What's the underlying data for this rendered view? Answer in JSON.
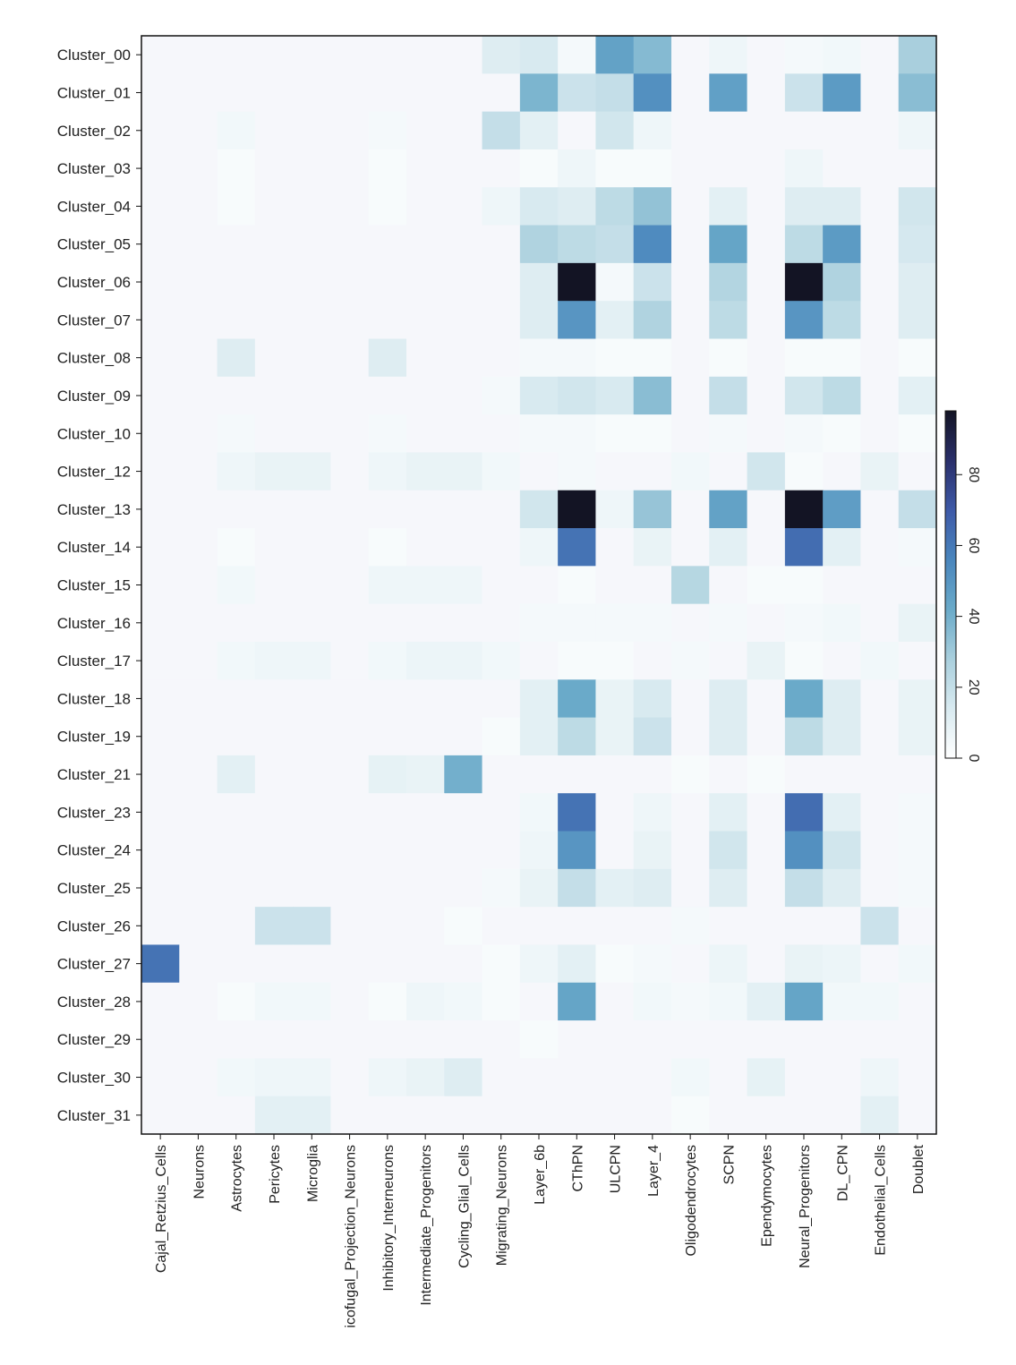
{
  "chart_data": {
    "type": "heatmap",
    "title": "",
    "xlabel": "",
    "ylabel": "",
    "colorbar": {
      "min": 0,
      "max": 98,
      "ticks": [
        0,
        20,
        40,
        60,
        80
      ],
      "tick_labels": [
        "0",
        "20",
        "40",
        "60",
        "80"
      ],
      "colors": [
        "#ffffff",
        "#d8eaf0",
        "#a9cfdd",
        "#6aaac9",
        "#4a86bd",
        "#3e5aa8",
        "#2a2f6a",
        "#131424"
      ]
    },
    "rows": [
      "Cluster_00",
      "Cluster_01",
      "Cluster_02",
      "Cluster_03",
      "Cluster_04",
      "Cluster_05",
      "Cluster_06",
      "Cluster_07",
      "Cluster_08",
      "Cluster_09",
      "Cluster_10",
      "Cluster_12",
      "Cluster_13",
      "Cluster_14",
      "Cluster_15",
      "Cluster_16",
      "Cluster_17",
      "Cluster_18",
      "Cluster_19",
      "Cluster_21",
      "Cluster_23",
      "Cluster_24",
      "Cluster_25",
      "Cluster_26",
      "Cluster_27",
      "Cluster_28",
      "Cluster_29",
      "Cluster_30",
      "Cluster_31"
    ],
    "columns": [
      "Cajal_Retzius_Cells",
      "Neurons",
      "Astrocytes",
      "Pericytes",
      "Microglia",
      "icofugal_Projection_Neurons",
      "Inhibitory_Interneurons",
      "Intermediate_Progenitors",
      "Cycling_Glial_Cells",
      "Migrating_Neurons",
      "Layer_6b",
      "CThPN",
      "ULCPN",
      "Layer_4",
      "Oligodendrocytes",
      "SCPN",
      "Ependymocytes",
      "Neural_Progenitors",
      "DL_CPN",
      "Endothelial_Cells",
      "Doublet"
    ],
    "values": [
      [
        0,
        0,
        0,
        0,
        0,
        0,
        0,
        0,
        0,
        12,
        14,
        4,
        45,
        36,
        0,
        6,
        0,
        4,
        5,
        0,
        28
      ],
      [
        0,
        0,
        0,
        0,
        0,
        0,
        0,
        0,
        0,
        0,
        38,
        18,
        20,
        52,
        0,
        46,
        0,
        18,
        48,
        0,
        35
      ],
      [
        0,
        0,
        5,
        0,
        0,
        0,
        4,
        0,
        0,
        20,
        10,
        0,
        16,
        6,
        0,
        0,
        0,
        0,
        0,
        0,
        6
      ],
      [
        0,
        0,
        3,
        0,
        0,
        0,
        3,
        0,
        0,
        0,
        3,
        6,
        3,
        3,
        0,
        0,
        0,
        6,
        0,
        0,
        0
      ],
      [
        0,
        0,
        3,
        0,
        0,
        0,
        3,
        0,
        0,
        6,
        14,
        12,
        22,
        33,
        0,
        10,
        0,
        12,
        12,
        0,
        16
      ],
      [
        0,
        0,
        0,
        0,
        0,
        0,
        0,
        0,
        0,
        0,
        26,
        22,
        20,
        54,
        0,
        44,
        0,
        22,
        48,
        0,
        15
      ],
      [
        0,
        0,
        0,
        0,
        0,
        0,
        0,
        0,
        0,
        0,
        12,
        98,
        4,
        18,
        0,
        25,
        0,
        98,
        26,
        0,
        12
      ],
      [
        0,
        0,
        0,
        0,
        0,
        0,
        0,
        0,
        0,
        0,
        12,
        50,
        10,
        26,
        0,
        22,
        0,
        50,
        22,
        0,
        12
      ],
      [
        0,
        0,
        12,
        0,
        0,
        0,
        12,
        0,
        0,
        0,
        4,
        4,
        3,
        3,
        0,
        3,
        0,
        3,
        3,
        0,
        3
      ],
      [
        0,
        0,
        0,
        0,
        0,
        0,
        0,
        0,
        0,
        4,
        14,
        16,
        14,
        35,
        0,
        20,
        0,
        16,
        22,
        0,
        10
      ],
      [
        0,
        0,
        4,
        0,
        0,
        0,
        4,
        0,
        0,
        0,
        4,
        4,
        3,
        3,
        0,
        4,
        0,
        4,
        3,
        0,
        3
      ],
      [
        0,
        0,
        6,
        8,
        8,
        0,
        6,
        8,
        8,
        5,
        0,
        4,
        0,
        0,
        5,
        0,
        16,
        3,
        0,
        8,
        0
      ],
      [
        0,
        0,
        0,
        0,
        0,
        0,
        0,
        0,
        0,
        0,
        16,
        98,
        6,
        32,
        0,
        45,
        0,
        98,
        47,
        0,
        20
      ],
      [
        0,
        0,
        3,
        0,
        0,
        0,
        3,
        0,
        0,
        0,
        6,
        62,
        0,
        8,
        0,
        10,
        0,
        64,
        10,
        0,
        4
      ],
      [
        0,
        0,
        5,
        0,
        0,
        0,
        6,
        6,
        6,
        0,
        0,
        3,
        0,
        0,
        24,
        0,
        3,
        3,
        0,
        0,
        0
      ],
      [
        0,
        0,
        0,
        0,
        0,
        0,
        0,
        0,
        0,
        0,
        4,
        4,
        4,
        4,
        0,
        4,
        0,
        4,
        5,
        0,
        8
      ],
      [
        0,
        0,
        5,
        6,
        6,
        0,
        5,
        7,
        7,
        5,
        0,
        3,
        3,
        0,
        4,
        0,
        8,
        3,
        0,
        5,
        0
      ],
      [
        0,
        0,
        0,
        0,
        0,
        0,
        0,
        0,
        0,
        0,
        10,
        42,
        8,
        14,
        0,
        12,
        0,
        42,
        12,
        0,
        8
      ],
      [
        0,
        0,
        0,
        0,
        0,
        0,
        0,
        0,
        0,
        3,
        10,
        22,
        8,
        18,
        0,
        12,
        0,
        22,
        12,
        0,
        8
      ],
      [
        0,
        0,
        10,
        0,
        0,
        0,
        9,
        8,
        40,
        0,
        0,
        0,
        0,
        0,
        3,
        0,
        3,
        0,
        0,
        0,
        0
      ],
      [
        0,
        0,
        0,
        0,
        0,
        0,
        0,
        0,
        0,
        0,
        5,
        62,
        0,
        6,
        0,
        10,
        0,
        64,
        10,
        0,
        4
      ],
      [
        0,
        0,
        0,
        0,
        0,
        0,
        0,
        0,
        0,
        0,
        6,
        50,
        0,
        8,
        0,
        16,
        0,
        52,
        16,
        0,
        4
      ],
      [
        0,
        0,
        0,
        0,
        0,
        0,
        0,
        0,
        0,
        4,
        8,
        20,
        10,
        12,
        0,
        12,
        0,
        20,
        12,
        0,
        4
      ],
      [
        0,
        0,
        0,
        18,
        18,
        0,
        0,
        0,
        3,
        0,
        0,
        0,
        0,
        0,
        4,
        0,
        0,
        0,
        0,
        18,
        0
      ],
      [
        62,
        0,
        0,
        0,
        0,
        0,
        0,
        0,
        0,
        3,
        6,
        10,
        3,
        4,
        0,
        7,
        0,
        8,
        7,
        0,
        5
      ],
      [
        0,
        0,
        3,
        5,
        5,
        0,
        3,
        6,
        5,
        3,
        0,
        44,
        0,
        5,
        4,
        5,
        10,
        44,
        5,
        5,
        0
      ],
      [
        0,
        0,
        0,
        0,
        0,
        0,
        0,
        0,
        0,
        0,
        3,
        0,
        0,
        0,
        0,
        0,
        0,
        0,
        0,
        0,
        0
      ],
      [
        0,
        0,
        5,
        6,
        6,
        0,
        6,
        8,
        12,
        0,
        0,
        0,
        0,
        0,
        5,
        0,
        9,
        0,
        0,
        6,
        0
      ],
      [
        0,
        0,
        0,
        10,
        10,
        0,
        0,
        0,
        0,
        0,
        0,
        0,
        0,
        0,
        3,
        0,
        0,
        0,
        0,
        10,
        0
      ]
    ]
  }
}
